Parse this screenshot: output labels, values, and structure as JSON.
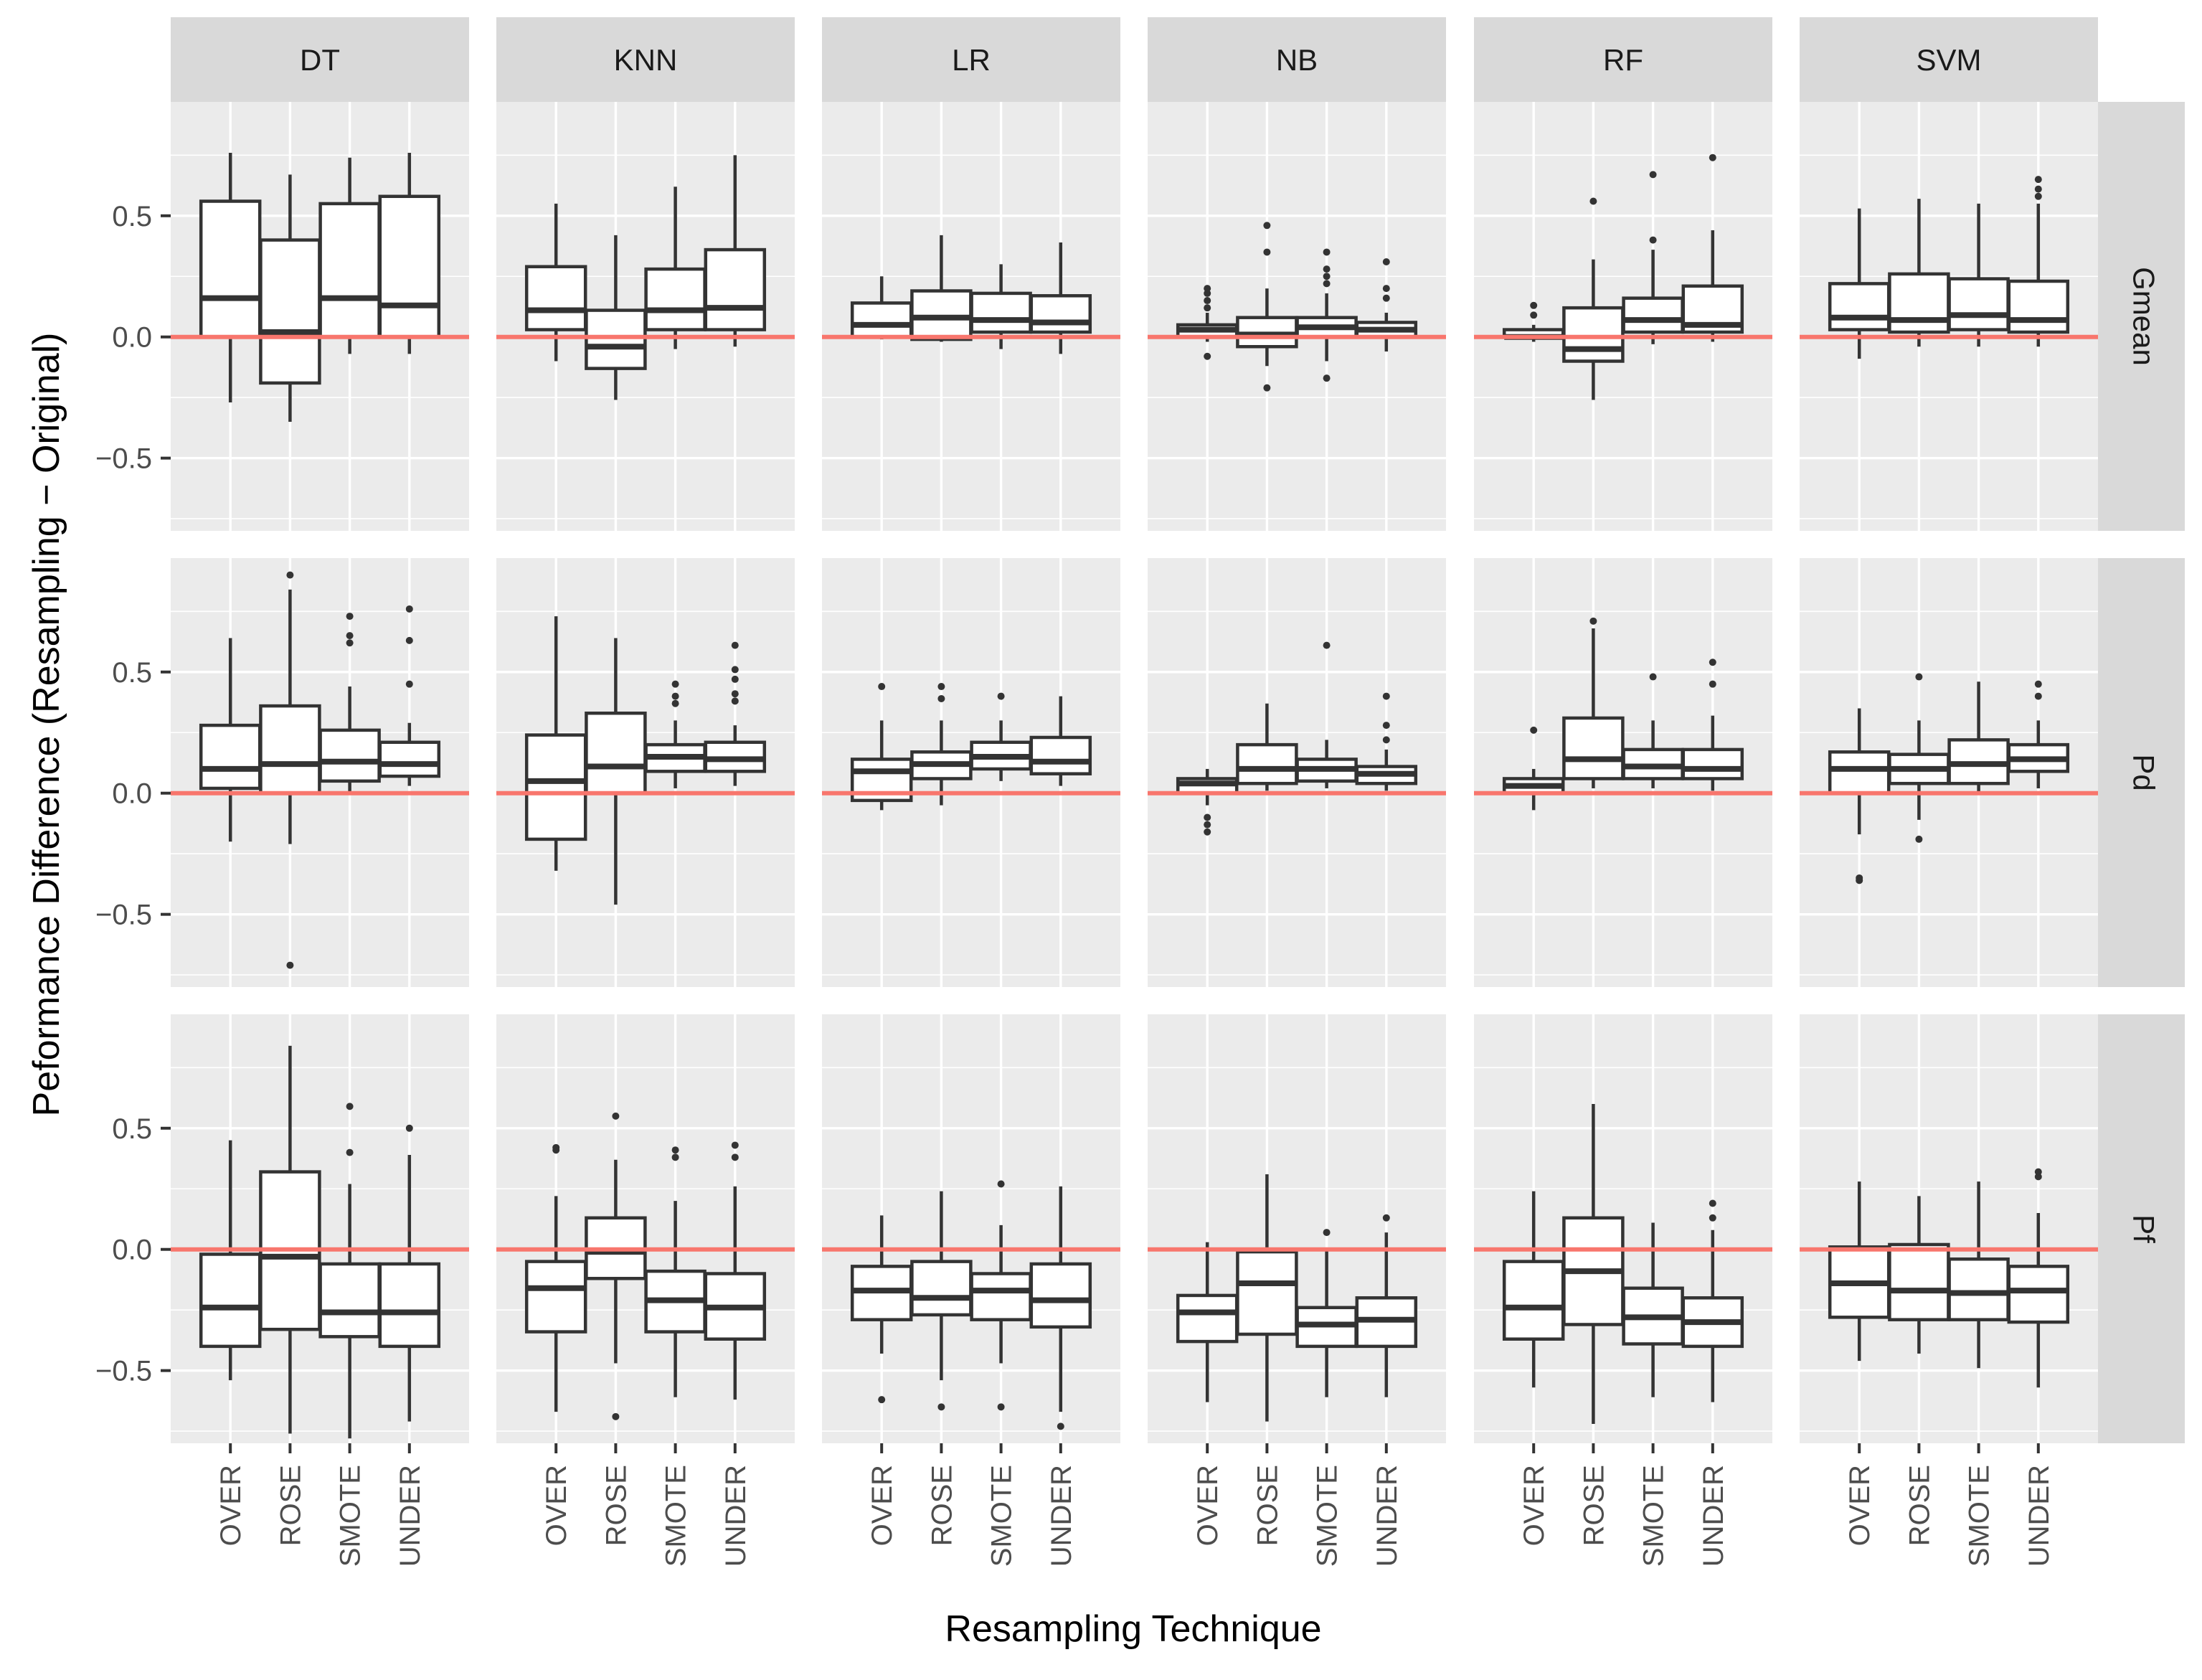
{
  "chart_data": {
    "type": "boxplot",
    "ylabel": "Peformance Difference (Resampling − Original)",
    "xlabel": "Resampling Technique",
    "ylim": [
      -0.8,
      0.97
    ],
    "yticks": [
      -0.5,
      0.0,
      0.5
    ],
    "ytick_labels": [
      "−0.5",
      "0.0",
      "0.5"
    ],
    "reference_line": {
      "y": 0,
      "color": "#F8766D"
    },
    "colors": {
      "panel_bg": "#EBEBEB",
      "grid": "#FFFFFF",
      "strip_bg": "#D9D9D9",
      "box": "#333333",
      "box_fill": "#FFFFFF",
      "text": "#4D4D4D",
      "title": "#000000"
    },
    "columns": [
      "DT",
      "KNN",
      "LR",
      "NB",
      "RF",
      "SVM"
    ],
    "rows": [
      "Gmean",
      "Pd",
      "Pf"
    ],
    "categories": [
      "OVER",
      "ROSE",
      "SMOTE",
      "UNDER"
    ],
    "panels": [
      {
        "row": "Gmean",
        "col": "DT",
        "boxes": [
          {
            "min": -0.27,
            "q1": 0.0,
            "median": 0.16,
            "q3": 0.56,
            "max": 0.76,
            "outliers": []
          },
          {
            "min": -0.35,
            "q1": -0.19,
            "median": 0.02,
            "q3": 0.4,
            "max": 0.67,
            "outliers": []
          },
          {
            "min": -0.07,
            "q1": 0.0,
            "median": 0.16,
            "q3": 0.55,
            "max": 0.74,
            "outliers": []
          },
          {
            "min": -0.07,
            "q1": 0.0,
            "median": 0.13,
            "q3": 0.58,
            "max": 0.76,
            "outliers": []
          }
        ]
      },
      {
        "row": "Gmean",
        "col": "KNN",
        "boxes": [
          {
            "min": -0.1,
            "q1": 0.03,
            "median": 0.11,
            "q3": 0.29,
            "max": 0.55,
            "outliers": []
          },
          {
            "min": -0.26,
            "q1": -0.13,
            "median": -0.04,
            "q3": 0.11,
            "max": 0.42,
            "outliers": []
          },
          {
            "min": -0.05,
            "q1": 0.03,
            "median": 0.11,
            "q3": 0.28,
            "max": 0.62,
            "outliers": []
          },
          {
            "min": -0.04,
            "q1": 0.03,
            "median": 0.12,
            "q3": 0.36,
            "max": 0.75,
            "outliers": []
          }
        ]
      },
      {
        "row": "Gmean",
        "col": "LR",
        "boxes": [
          {
            "min": -0.01,
            "q1": 0.0,
            "median": 0.05,
            "q3": 0.14,
            "max": 0.25,
            "outliers": []
          },
          {
            "min": -0.02,
            "q1": -0.01,
            "median": 0.08,
            "q3": 0.19,
            "max": 0.42,
            "outliers": []
          },
          {
            "min": -0.05,
            "q1": 0.02,
            "median": 0.07,
            "q3": 0.18,
            "max": 0.3,
            "outliers": []
          },
          {
            "min": -0.07,
            "q1": 0.02,
            "median": 0.06,
            "q3": 0.17,
            "max": 0.39,
            "outliers": []
          }
        ]
      },
      {
        "row": "Gmean",
        "col": "NB",
        "boxes": [
          {
            "min": -0.02,
            "q1": 0.0,
            "median": 0.03,
            "q3": 0.05,
            "max": 0.1,
            "outliers": [
              -0.08,
              0.12,
              0.15,
              0.18,
              0.2
            ]
          },
          {
            "min": -0.12,
            "q1": -0.04,
            "median": 0.01,
            "q3": 0.08,
            "max": 0.2,
            "outliers": [
              -0.21,
              0.35,
              0.46
            ]
          },
          {
            "min": -0.1,
            "q1": 0.0,
            "median": 0.04,
            "q3": 0.08,
            "max": 0.18,
            "outliers": [
              -0.17,
              0.22,
              0.25,
              0.28,
              0.35
            ]
          },
          {
            "min": -0.06,
            "q1": 0.0,
            "median": 0.03,
            "q3": 0.06,
            "max": 0.1,
            "outliers": [
              0.16,
              0.2,
              0.31
            ]
          }
        ]
      },
      {
        "row": "Gmean",
        "col": "RF",
        "boxes": [
          {
            "min": -0.02,
            "q1": 0.0,
            "median": 0.0,
            "q3": 0.03,
            "max": 0.05,
            "outliers": [
              0.09,
              0.13
            ]
          },
          {
            "min": -0.26,
            "q1": -0.1,
            "median": -0.05,
            "q3": 0.12,
            "max": 0.32,
            "outliers": [
              0.56
            ]
          },
          {
            "min": -0.03,
            "q1": 0.02,
            "median": 0.07,
            "q3": 0.16,
            "max": 0.36,
            "outliers": [
              0.4,
              0.67
            ]
          },
          {
            "min": -0.02,
            "q1": 0.02,
            "median": 0.05,
            "q3": 0.21,
            "max": 0.44,
            "outliers": [
              0.74
            ]
          }
        ]
      },
      {
        "row": "Gmean",
        "col": "SVM",
        "boxes": [
          {
            "min": -0.09,
            "q1": 0.03,
            "median": 0.08,
            "q3": 0.22,
            "max": 0.53,
            "outliers": []
          },
          {
            "min": -0.04,
            "q1": 0.02,
            "median": 0.07,
            "q3": 0.26,
            "max": 0.57,
            "outliers": []
          },
          {
            "min": -0.04,
            "q1": 0.03,
            "median": 0.09,
            "q3": 0.24,
            "max": 0.55,
            "outliers": []
          },
          {
            "min": -0.04,
            "q1": 0.02,
            "median": 0.07,
            "q3": 0.23,
            "max": 0.55,
            "outliers": [
              0.58,
              0.61,
              0.65
            ]
          }
        ]
      },
      {
        "row": "Pd",
        "col": "DT",
        "boxes": [
          {
            "min": -0.2,
            "q1": 0.02,
            "median": 0.1,
            "q3": 0.28,
            "max": 0.64,
            "outliers": []
          },
          {
            "min": -0.21,
            "q1": 0.0,
            "median": 0.12,
            "q3": 0.36,
            "max": 0.84,
            "outliers": [
              -0.71,
              0.9
            ]
          },
          {
            "min": 0.0,
            "q1": 0.05,
            "median": 0.13,
            "q3": 0.26,
            "max": 0.44,
            "outliers": [
              0.62,
              0.65,
              0.73
            ]
          },
          {
            "min": 0.03,
            "q1": 0.07,
            "median": 0.12,
            "q3": 0.21,
            "max": 0.29,
            "outliers": [
              0.45,
              0.63,
              0.76
            ]
          }
        ]
      },
      {
        "row": "Pd",
        "col": "KNN",
        "boxes": [
          {
            "min": -0.32,
            "q1": -0.19,
            "median": 0.05,
            "q3": 0.24,
            "max": 0.73,
            "outliers": []
          },
          {
            "min": -0.46,
            "q1": 0.0,
            "median": 0.11,
            "q3": 0.33,
            "max": 0.64,
            "outliers": []
          },
          {
            "min": 0.02,
            "q1": 0.09,
            "median": 0.15,
            "q3": 0.2,
            "max": 0.3,
            "outliers": [
              0.37,
              0.4,
              0.45
            ]
          },
          {
            "min": 0.03,
            "q1": 0.09,
            "median": 0.14,
            "q3": 0.21,
            "max": 0.28,
            "outliers": [
              0.38,
              0.41,
              0.47,
              0.51,
              0.61
            ]
          }
        ]
      },
      {
        "row": "Pd",
        "col": "LR",
        "boxes": [
          {
            "min": -0.07,
            "q1": -0.03,
            "median": 0.09,
            "q3": 0.14,
            "max": 0.3,
            "outliers": [
              0.44
            ]
          },
          {
            "min": -0.05,
            "q1": 0.06,
            "median": 0.12,
            "q3": 0.17,
            "max": 0.3,
            "outliers": [
              0.39,
              0.44
            ]
          },
          {
            "min": 0.05,
            "q1": 0.1,
            "median": 0.15,
            "q3": 0.21,
            "max": 0.3,
            "outliers": [
              0.4
            ]
          },
          {
            "min": 0.03,
            "q1": 0.08,
            "median": 0.13,
            "q3": 0.23,
            "max": 0.4,
            "outliers": []
          }
        ]
      },
      {
        "row": "Pd",
        "col": "NB",
        "boxes": [
          {
            "min": -0.05,
            "q1": 0.0,
            "median": 0.04,
            "q3": 0.06,
            "max": 0.1,
            "outliers": [
              -0.16,
              -0.13,
              -0.1
            ]
          },
          {
            "min": 0.01,
            "q1": 0.04,
            "median": 0.1,
            "q3": 0.2,
            "max": 0.37,
            "outliers": []
          },
          {
            "min": 0.02,
            "q1": 0.05,
            "median": 0.1,
            "q3": 0.14,
            "max": 0.22,
            "outliers": [
              0.61
            ]
          },
          {
            "min": 0.01,
            "q1": 0.04,
            "median": 0.08,
            "q3": 0.11,
            "max": 0.18,
            "outliers": [
              0.22,
              0.28,
              0.4
            ]
          }
        ]
      },
      {
        "row": "Pd",
        "col": "RF",
        "boxes": [
          {
            "min": -0.07,
            "q1": 0.0,
            "median": 0.03,
            "q3": 0.06,
            "max": 0.1,
            "outliers": [
              0.26
            ]
          },
          {
            "min": 0.02,
            "q1": 0.06,
            "median": 0.14,
            "q3": 0.31,
            "max": 0.68,
            "outliers": [
              0.71
            ]
          },
          {
            "min": 0.02,
            "q1": 0.06,
            "median": 0.11,
            "q3": 0.18,
            "max": 0.3,
            "outliers": [
              0.48
            ]
          },
          {
            "min": 0.01,
            "q1": 0.06,
            "median": 0.1,
            "q3": 0.18,
            "max": 0.32,
            "outliers": [
              0.45,
              0.54
            ]
          }
        ]
      },
      {
        "row": "Pd",
        "col": "SVM",
        "boxes": [
          {
            "min": -0.17,
            "q1": 0.0,
            "median": 0.1,
            "q3": 0.17,
            "max": 0.35,
            "outliers": [
              -0.36,
              -0.35
            ]
          },
          {
            "min": -0.11,
            "q1": 0.04,
            "median": 0.1,
            "q3": 0.16,
            "max": 0.3,
            "outliers": [
              -0.19,
              0.48
            ]
          },
          {
            "min": 0.0,
            "q1": 0.04,
            "median": 0.12,
            "q3": 0.22,
            "max": 0.46,
            "outliers": []
          },
          {
            "min": 0.02,
            "q1": 0.09,
            "median": 0.14,
            "q3": 0.2,
            "max": 0.3,
            "outliers": [
              0.4,
              0.45
            ]
          }
        ]
      },
      {
        "row": "Pf",
        "col": "DT",
        "boxes": [
          {
            "min": -0.54,
            "q1": -0.4,
            "median": -0.24,
            "q3": -0.02,
            "max": 0.45,
            "outliers": []
          },
          {
            "min": -0.76,
            "q1": -0.33,
            "median": -0.03,
            "q3": 0.32,
            "max": 0.84,
            "outliers": []
          },
          {
            "min": -0.78,
            "q1": -0.36,
            "median": -0.26,
            "q3": -0.06,
            "max": 0.27,
            "outliers": [
              0.4,
              0.59
            ]
          },
          {
            "min": -0.71,
            "q1": -0.4,
            "median": -0.26,
            "q3": -0.06,
            "max": 0.39,
            "outliers": [
              0.5
            ]
          }
        ]
      },
      {
        "row": "Pf",
        "col": "KNN",
        "boxes": [
          {
            "min": -0.67,
            "q1": -0.34,
            "median": -0.16,
            "q3": -0.05,
            "max": 0.22,
            "outliers": [
              0.41,
              0.42
            ]
          },
          {
            "min": -0.47,
            "q1": -0.12,
            "median": -0.01,
            "q3": 0.13,
            "max": 0.37,
            "outliers": [
              -0.69,
              0.55
            ]
          },
          {
            "min": -0.61,
            "q1": -0.34,
            "median": -0.21,
            "q3": -0.09,
            "max": 0.2,
            "outliers": [
              0.38,
              0.41
            ]
          },
          {
            "min": -0.62,
            "q1": -0.37,
            "median": -0.24,
            "q3": -0.1,
            "max": 0.26,
            "outliers": [
              0.38,
              0.43
            ]
          }
        ]
      },
      {
        "row": "Pf",
        "col": "LR",
        "boxes": [
          {
            "min": -0.43,
            "q1": -0.29,
            "median": -0.17,
            "q3": -0.07,
            "max": 0.14,
            "outliers": [
              -0.62
            ]
          },
          {
            "min": -0.54,
            "q1": -0.27,
            "median": -0.2,
            "q3": -0.05,
            "max": 0.24,
            "outliers": [
              -0.65
            ]
          },
          {
            "min": -0.47,
            "q1": -0.29,
            "median": -0.17,
            "q3": -0.1,
            "max": 0.1,
            "outliers": [
              -0.65,
              0.27
            ]
          },
          {
            "min": -0.67,
            "q1": -0.32,
            "median": -0.21,
            "q3": -0.06,
            "max": 0.26,
            "outliers": [
              -0.73
            ]
          }
        ]
      },
      {
        "row": "Pf",
        "col": "NB",
        "boxes": [
          {
            "min": -0.63,
            "q1": -0.38,
            "median": -0.26,
            "q3": -0.19,
            "max": 0.03,
            "outliers": []
          },
          {
            "min": -0.71,
            "q1": -0.35,
            "median": -0.14,
            "q3": -0.01,
            "max": 0.31,
            "outliers": []
          },
          {
            "min": -0.61,
            "q1": -0.4,
            "median": -0.31,
            "q3": -0.24,
            "max": 0.0,
            "outliers": [
              0.07
            ]
          },
          {
            "min": -0.61,
            "q1": -0.4,
            "median": -0.29,
            "q3": -0.2,
            "max": 0.07,
            "outliers": [
              0.13
            ]
          }
        ]
      },
      {
        "row": "Pf",
        "col": "RF",
        "boxes": [
          {
            "min": -0.57,
            "q1": -0.37,
            "median": -0.24,
            "q3": -0.05,
            "max": 0.24,
            "outliers": []
          },
          {
            "min": -0.72,
            "q1": -0.31,
            "median": -0.09,
            "q3": 0.13,
            "max": 0.6,
            "outliers": []
          },
          {
            "min": -0.61,
            "q1": -0.39,
            "median": -0.28,
            "q3": -0.16,
            "max": 0.11,
            "outliers": []
          },
          {
            "min": -0.63,
            "q1": -0.4,
            "median": -0.3,
            "q3": -0.2,
            "max": 0.08,
            "outliers": [
              0.13,
              0.19
            ]
          }
        ]
      },
      {
        "row": "Pf",
        "col": "SVM",
        "boxes": [
          {
            "min": -0.46,
            "q1": -0.28,
            "median": -0.14,
            "q3": 0.01,
            "max": 0.28,
            "outliers": []
          },
          {
            "min": -0.43,
            "q1": -0.29,
            "median": -0.17,
            "q3": 0.02,
            "max": 0.22,
            "outliers": []
          },
          {
            "min": -0.49,
            "q1": -0.29,
            "median": -0.18,
            "q3": -0.04,
            "max": 0.28,
            "outliers": []
          },
          {
            "min": -0.57,
            "q1": -0.3,
            "median": -0.17,
            "q3": -0.07,
            "max": 0.15,
            "outliers": [
              0.3,
              0.32
            ]
          }
        ]
      }
    ]
  }
}
